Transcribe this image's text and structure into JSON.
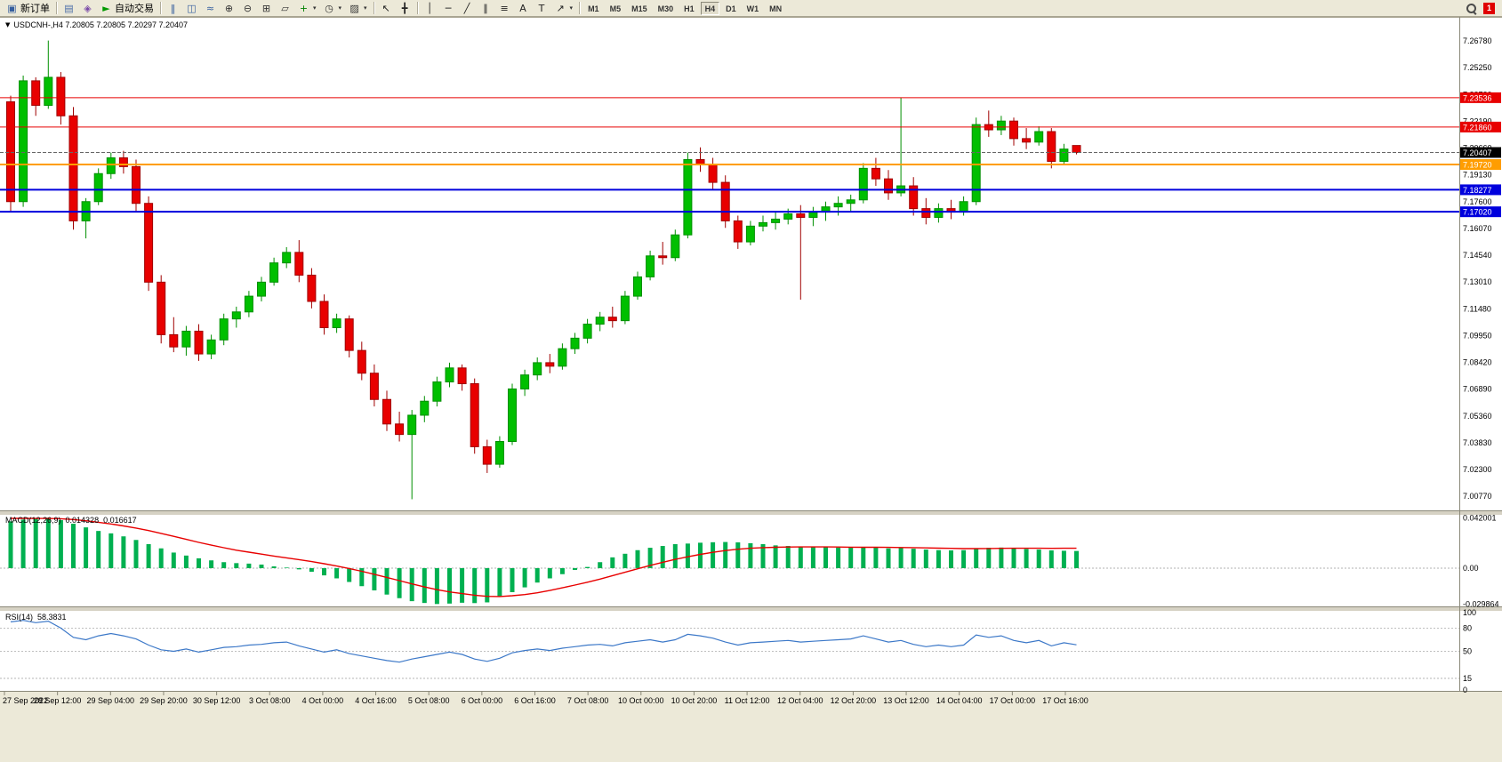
{
  "toolbar": {
    "new_order": {
      "glyph": "▣",
      "label": "新订单"
    },
    "auto_trading": {
      "glyph": "►",
      "label": "自动交易"
    },
    "notification_count": "1",
    "groups": {
      "g1": [
        {
          "name": "charts-window-icon",
          "glyph": "▤",
          "color": "#4a6da8"
        },
        {
          "name": "profile-icon",
          "glyph": "◈",
          "color": "#7a4aa8"
        }
      ],
      "g2": [
        {
          "name": "bars-chart-icon",
          "glyph": "‖",
          "color": "#355e9e"
        },
        {
          "name": "candlestick-chart-icon",
          "glyph": "◫",
          "color": "#355e9e"
        },
        {
          "name": "line-chart-icon",
          "glyph": "≈",
          "color": "#355e9e"
        },
        {
          "name": "zoom-in-icon",
          "glyph": "⊕",
          "color": "#333333"
        },
        {
          "name": "zoom-out-icon",
          "glyph": "⊖",
          "color": "#333333"
        },
        {
          "name": "tile-windows-icon",
          "glyph": "⊞",
          "color": "#333333"
        },
        {
          "name": "cascade-windows-icon",
          "glyph": "▱",
          "color": "#333333"
        },
        {
          "name": "indicators-add-icon",
          "glyph": "+",
          "color": "#008000",
          "caret": true
        },
        {
          "name": "periods-icon",
          "glyph": "◷",
          "color": "#333333",
          "caret": true
        },
        {
          "name": "templates-icon",
          "glyph": "▨",
          "color": "#333333",
          "caret": true
        }
      ],
      "g3": [
        {
          "name": "cursor-icon",
          "glyph": "↖",
          "color": "#222222"
        },
        {
          "name": "crosshair-icon",
          "glyph": "╋",
          "color": "#222222"
        }
      ],
      "g4": [
        {
          "name": "vertical-line-icon",
          "glyph": "│",
          "color": "#222222"
        },
        {
          "name": "horizontal-line-icon",
          "glyph": "─",
          "color": "#222222"
        },
        {
          "name": "trendline-icon",
          "glyph": "╱",
          "color": "#222222"
        },
        {
          "name": "channel-icon",
          "glyph": "∥",
          "color": "#222222"
        },
        {
          "name": "fibonacci-icon",
          "glyph": "≡",
          "color": "#222222"
        },
        {
          "name": "text-icon",
          "glyph": "A",
          "color": "#222222"
        },
        {
          "name": "label-icon",
          "glyph": "T",
          "color": "#222222"
        },
        {
          "name": "arrow-tool-icon",
          "glyph": "↗",
          "color": "#222222",
          "caret": true
        }
      ]
    },
    "timeframes": [
      "M1",
      "M5",
      "M15",
      "M30",
      "H1",
      "H4",
      "D1",
      "W1",
      "MN"
    ],
    "active_timeframe": "H4"
  },
  "chart": {
    "collapse_glyph": "▼",
    "header": "USDCNH-,H4 7.20805 7.20805 7.20297 7.20407",
    "price_axis_labels": [
      "7.26780",
      "7.25250",
      "7.23720",
      "7.22190",
      "7.20660",
      "7.19130",
      "7.17600",
      "7.16070",
      "7.14540",
      "7.13010",
      "7.11480",
      "7.09950",
      "7.08420",
      "7.06890",
      "7.05360",
      "7.03830",
      "7.02300",
      "7.00770"
    ],
    "hlines": [
      {
        "label": "7.23536",
        "price": 7.23536,
        "color": "#e80000",
        "width": 1
      },
      {
        "label": "7.21860",
        "price": 7.2186,
        "color": "#e80000",
        "width": 1
      },
      {
        "label": "7.20407",
        "price": 7.20407,
        "color": "#666666",
        "width": 1,
        "dash": "4,2",
        "tag": "#000000"
      },
      {
        "label": "7.19720",
        "price": 7.1972,
        "color": "#ff9d00",
        "width": 2
      },
      {
        "label": "7.18277",
        "price": 7.18277,
        "color": "#0000dd",
        "width": 2
      },
      {
        "label": "7.17020",
        "price": 7.1702,
        "color": "#0000dd",
        "width": 2
      }
    ],
    "time_axis_labels": [
      "27 Sep 2022",
      "28 Sep 12:00",
      "29 Sep 04:00",
      "29 Sep 20:00",
      "30 Sep 12:00",
      "3 Oct 08:00",
      "4 Oct 00:00",
      "4 Oct 16:00",
      "5 Oct 08:00",
      "6 Oct 00:00",
      "6 Oct 16:00",
      "7 Oct 08:00",
      "10 Oct 00:00",
      "10 Oct 20:00",
      "11 Oct 12:00",
      "12 Oct 04:00",
      "12 Oct 20:00",
      "13 Oct 12:00",
      "14 Oct 04:00",
      "17 Oct 00:00",
      "17 Oct 16:00"
    ]
  },
  "macd": {
    "title": "MACD(12,26,9)",
    "value_main": "0.014328",
    "value_signal": "0.016617",
    "axis_labels": [
      "0.042001",
      "0.00",
      "-0.029864"
    ]
  },
  "rsi": {
    "title": "RSI(14)",
    "value": "58.3831",
    "axis_labels": [
      "100",
      "80",
      "50",
      "15",
      "0"
    ],
    "levels": [
      80,
      50,
      15
    ]
  },
  "colors": {
    "up_candle": "#00bf00",
    "up_candle_border": "#008f00",
    "down_candle": "#e80000",
    "down_candle_border": "#a00000",
    "macd_histogram": "#00b050",
    "macd_signal": "#e80000",
    "rsi_line": "#3c78c8"
  },
  "chart_data": {
    "type": "candlestick",
    "symbol": "USDCNH-",
    "timeframe": "H4",
    "current_ohlc": {
      "open": "7.20805",
      "high": "7.20805",
      "low": "7.20297",
      "close": "7.20407"
    },
    "ylim": [
      7.0077,
      7.2678
    ],
    "horizontal_levels": [
      7.23536,
      7.2186,
      7.1972,
      7.18277,
      7.1702
    ],
    "current_price": 7.20407,
    "ohlc": [
      [
        7.233,
        7.2365,
        7.17,
        7.176
      ],
      [
        7.176,
        7.248,
        7.173,
        7.245
      ],
      [
        7.245,
        7.247,
        7.225,
        7.231
      ],
      [
        7.231,
        7.268,
        7.229,
        7.247
      ],
      [
        7.247,
        7.25,
        7.22,
        7.225
      ],
      [
        7.225,
        7.23,
        7.16,
        7.165
      ],
      [
        7.165,
        7.178,
        7.155,
        7.176
      ],
      [
        7.176,
        7.195,
        7.174,
        7.192
      ],
      [
        7.192,
        7.204,
        7.189,
        7.201
      ],
      [
        7.201,
        7.205,
        7.192,
        7.196
      ],
      [
        7.196,
        7.2,
        7.17,
        7.175
      ],
      [
        7.175,
        7.179,
        7.125,
        7.13
      ],
      [
        7.13,
        7.134,
        7.095,
        7.1
      ],
      [
        7.1,
        7.11,
        7.09,
        7.093
      ],
      [
        7.093,
        7.105,
        7.088,
        7.102
      ],
      [
        7.102,
        7.106,
        7.085,
        7.089
      ],
      [
        7.089,
        7.1,
        7.086,
        7.097
      ],
      [
        7.097,
        7.112,
        7.094,
        7.109
      ],
      [
        7.109,
        7.116,
        7.104,
        7.113
      ],
      [
        7.113,
        7.125,
        7.11,
        7.122
      ],
      [
        7.122,
        7.133,
        7.119,
        7.13
      ],
      [
        7.13,
        7.144,
        7.128,
        7.141
      ],
      [
        7.141,
        7.15,
        7.138,
        7.147
      ],
      [
        7.147,
        7.154,
        7.13,
        7.134
      ],
      [
        7.134,
        7.138,
        7.115,
        7.119
      ],
      [
        7.119,
        7.123,
        7.1,
        7.104
      ],
      [
        7.104,
        7.112,
        7.101,
        7.109
      ],
      [
        7.109,
        7.111,
        7.087,
        7.091
      ],
      [
        7.091,
        7.096,
        7.074,
        7.078
      ],
      [
        7.078,
        7.083,
        7.059,
        7.063
      ],
      [
        7.063,
        7.068,
        7.045,
        7.049
      ],
      [
        7.049,
        7.056,
        7.039,
        7.043
      ],
      [
        7.043,
        7.057,
        7.006,
        7.054
      ],
      [
        7.054,
        7.065,
        7.05,
        7.062
      ],
      [
        7.062,
        7.076,
        7.059,
        7.073
      ],
      [
        7.073,
        7.084,
        7.07,
        7.081
      ],
      [
        7.081,
        7.083,
        7.068,
        7.072
      ],
      [
        7.072,
        7.075,
        7.032,
        7.036
      ],
      [
        7.036,
        7.04,
        7.021,
        7.026
      ],
      [
        7.026,
        7.042,
        7.024,
        7.039
      ],
      [
        7.039,
        7.072,
        7.037,
        7.069
      ],
      [
        7.069,
        7.08,
        7.065,
        7.077
      ],
      [
        7.077,
        7.087,
        7.074,
        7.084
      ],
      [
        7.084,
        7.089,
        7.078,
        7.082
      ],
      [
        7.082,
        7.095,
        7.08,
        7.092
      ],
      [
        7.092,
        7.101,
        7.089,
        7.098
      ],
      [
        7.098,
        7.109,
        7.095,
        7.106
      ],
      [
        7.106,
        7.113,
        7.102,
        7.11
      ],
      [
        7.11,
        7.116,
        7.104,
        7.108
      ],
      [
        7.108,
        7.125,
        7.106,
        7.122
      ],
      [
        7.122,
        7.136,
        7.12,
        7.133
      ],
      [
        7.133,
        7.148,
        7.131,
        7.145
      ],
      [
        7.145,
        7.153,
        7.14,
        7.144
      ],
      [
        7.144,
        7.16,
        7.142,
        7.157
      ],
      [
        7.157,
        7.204,
        7.155,
        7.2
      ],
      [
        7.2,
        7.207,
        7.193,
        7.197
      ],
      [
        7.197,
        7.201,
        7.183,
        7.187
      ],
      [
        7.187,
        7.191,
        7.161,
        7.165
      ],
      [
        7.165,
        7.168,
        7.149,
        7.153
      ],
      [
        7.153,
        7.165,
        7.151,
        7.162
      ],
      [
        7.162,
        7.168,
        7.159,
        7.164
      ],
      [
        7.164,
        7.17,
        7.16,
        7.166
      ],
      [
        7.166,
        7.172,
        7.163,
        7.169
      ],
      [
        7.169,
        7.174,
        7.12,
        7.167
      ],
      [
        7.167,
        7.173,
        7.162,
        7.17
      ],
      [
        7.17,
        7.176,
        7.165,
        7.173
      ],
      [
        7.173,
        7.179,
        7.168,
        7.175
      ],
      [
        7.175,
        7.18,
        7.17,
        7.177
      ],
      [
        7.177,
        7.198,
        7.175,
        7.195
      ],
      [
        7.195,
        7.201,
        7.185,
        7.189
      ],
      [
        7.189,
        7.194,
        7.177,
        7.181
      ],
      [
        7.181,
        7.2353,
        7.179,
        7.185
      ],
      [
        7.185,
        7.19,
        7.168,
        7.172
      ],
      [
        7.172,
        7.178,
        7.163,
        7.167
      ],
      [
        7.167,
        7.175,
        7.164,
        7.172
      ],
      [
        7.172,
        7.177,
        7.166,
        7.17
      ],
      [
        7.17,
        7.179,
        7.168,
        7.176
      ],
      [
        7.176,
        7.224,
        7.174,
        7.22
      ],
      [
        7.22,
        7.228,
        7.213,
        7.217
      ],
      [
        7.217,
        7.225,
        7.214,
        7.222
      ],
      [
        7.222,
        7.224,
        7.208,
        7.212
      ],
      [
        7.212,
        7.218,
        7.206,
        7.21
      ],
      [
        7.21,
        7.219,
        7.208,
        7.216
      ],
      [
        7.216,
        7.218,
        7.195,
        7.199
      ],
      [
        7.199,
        7.209,
        7.197,
        7.206
      ],
      [
        7.20805,
        7.20805,
        7.20297,
        7.20407
      ]
    ],
    "macd": {
      "ylim": [
        -0.029864,
        0.042001
      ],
      "histogram": [
        0.039,
        0.0405,
        0.0415,
        0.042001,
        0.04,
        0.037,
        0.034,
        0.031,
        0.029,
        0.0265,
        0.0235,
        0.02,
        0.0165,
        0.013,
        0.0105,
        0.0082,
        0.0065,
        0.005,
        0.0042,
        0.0038,
        0.003,
        0.0015,
        0.0005,
        -0.001,
        -0.003,
        -0.006,
        -0.0085,
        -0.0115,
        -0.015,
        -0.0185,
        -0.022,
        -0.025,
        -0.0275,
        -0.029,
        -0.029864,
        -0.0295,
        -0.0288,
        -0.0291,
        -0.0285,
        -0.024,
        -0.02,
        -0.016,
        -0.012,
        -0.0085,
        -0.005,
        -0.0015,
        0.001,
        0.005,
        0.009,
        0.012,
        0.015,
        0.017,
        0.0185,
        0.02,
        0.0205,
        0.0212,
        0.0216,
        0.0218,
        0.0215,
        0.0208,
        0.02,
        0.019,
        0.0185,
        0.018,
        0.0178,
        0.0175,
        0.0172,
        0.017,
        0.0172,
        0.017,
        0.0165,
        0.0168,
        0.0162,
        0.0155,
        0.015,
        0.0148,
        0.015,
        0.0165,
        0.017,
        0.0172,
        0.0168,
        0.016,
        0.0155,
        0.0148,
        0.0145,
        0.014328
      ],
      "signal": [
        0.0415,
        0.0415,
        0.0414,
        0.0414,
        0.0412,
        0.0405,
        0.0395,
        0.0382,
        0.0368,
        0.0352,
        0.0334,
        0.0313,
        0.029,
        0.0265,
        0.024,
        0.0215,
        0.0192,
        0.017,
        0.015,
        0.0133,
        0.0117,
        0.0101,
        0.0086,
        0.0071,
        0.0055,
        0.0037,
        0.0018,
        -0.0003,
        -0.0026,
        -0.0051,
        -0.0077,
        -0.0104,
        -0.0131,
        -0.0156,
        -0.0179,
        -0.0198,
        -0.0212,
        -0.0225,
        -0.0235,
        -0.0236,
        -0.023,
        -0.022,
        -0.0205,
        -0.0186,
        -0.0164,
        -0.0141,
        -0.0117,
        -0.0091,
        -0.0062,
        -0.0034,
        -0.0005,
        0.0023,
        0.0049,
        0.0073,
        0.0095,
        0.0115,
        0.0132,
        0.0147,
        0.0158,
        0.0166,
        0.0171,
        0.0174,
        0.0176,
        0.0177,
        0.0177,
        0.0177,
        0.0176,
        0.0175,
        0.0174,
        0.0174,
        0.0173,
        0.0172,
        0.0171,
        0.0169,
        0.0167,
        0.0165,
        0.0163,
        0.0163,
        0.0164,
        0.0165,
        0.0166,
        0.0166,
        0.0166,
        0.0165,
        0.0166,
        0.016617
      ]
    },
    "rsi": [
      88,
      90,
      87,
      89,
      80,
      68,
      65,
      70,
      73,
      70,
      66,
      58,
      52,
      50,
      53,
      49,
      52,
      55,
      56,
      58,
      59,
      61,
      62,
      57,
      53,
      49,
      52,
      47,
      44,
      41,
      38,
      36,
      40,
      43,
      46,
      49,
      46,
      40,
      37,
      41,
      48,
      51,
      53,
      51,
      54,
      56,
      58,
      59,
      57,
      61,
      63,
      65,
      62,
      65,
      72,
      70,
      67,
      62,
      58,
      61,
      62,
      63,
      64,
      62,
      63,
      64,
      65,
      66,
      70,
      66,
      62,
      64,
      59,
      56,
      58,
      56,
      58,
      71,
      68,
      70,
      64,
      61,
      64,
      57,
      61,
      58.3831
    ]
  }
}
